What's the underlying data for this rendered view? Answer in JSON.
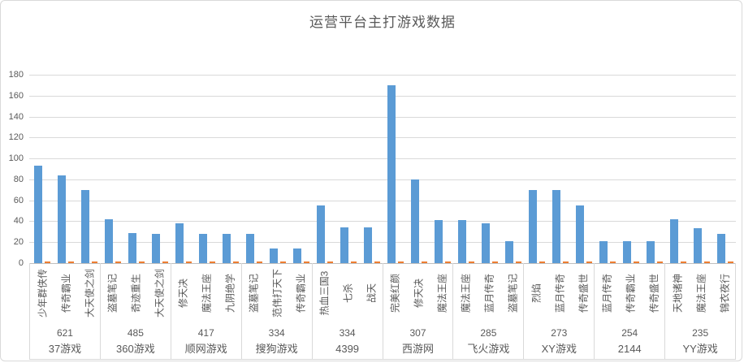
{
  "title": "运营平台主打游戏数据",
  "colors": {
    "bar_primary": "#5B9BD5",
    "bar_secondary": "#ED7D31",
    "gridline": "#D9D9D9",
    "axis_line": "#BFBFBF",
    "text": "#595959"
  },
  "chart_data": {
    "type": "bar",
    "title": "运营平台主打游戏数据",
    "xlabel": "",
    "ylabel": "",
    "y_axis": {
      "min": 0,
      "max": 180,
      "step": 20,
      "tick_labels": [
        "0",
        "20",
        "40",
        "60",
        "80",
        "100",
        "120",
        "140",
        "160",
        "180"
      ]
    },
    "grid": true,
    "legend": "none",
    "groups": [
      {
        "platform": "37游戏",
        "total": "621",
        "games": [
          "少年群侠传",
          "传奇霸业",
          "大天使之剑"
        ],
        "values": [
          93,
          84,
          70
        ],
        "values2": [
          1,
          1,
          1
        ]
      },
      {
        "platform": "360游戏",
        "total": "485",
        "games": [
          "盗墓笔记",
          "奇迹重生",
          "大天使之剑"
        ],
        "values": [
          42,
          29,
          28
        ],
        "values2": [
          1,
          1,
          1
        ]
      },
      {
        "platform": "顺网游戏",
        "total": "417",
        "games": [
          "修天决",
          "魔法王座",
          "九阴绝学"
        ],
        "values": [
          38,
          28,
          28
        ],
        "values2": [
          1,
          1,
          1
        ]
      },
      {
        "platform": "搜狗游戏",
        "total": "334",
        "games": [
          "盗墓笔记",
          "范伟打天下",
          "传奇霸业"
        ],
        "values": [
          28,
          14,
          14
        ],
        "values2": [
          1,
          1,
          1
        ]
      },
      {
        "platform": "4399",
        "total": "334",
        "games": [
          "热血三国3",
          "七杀",
          "战天"
        ],
        "values": [
          55,
          34,
          34
        ],
        "values2": [
          1,
          1,
          1
        ]
      },
      {
        "platform": "西游网",
        "total": "307",
        "games": [
          "完美红颜",
          "修天决",
          "魔法王座"
        ],
        "values": [
          170,
          80,
          41
        ],
        "values2": [
          1,
          1,
          1
        ]
      },
      {
        "platform": "飞火游戏",
        "total": "285",
        "games": [
          "魔法王座",
          "蓝月传奇",
          "盗墓笔记"
        ],
        "values": [
          41,
          38,
          21
        ],
        "values2": [
          1,
          1,
          1
        ]
      },
      {
        "platform": "XY游戏",
        "total": "273",
        "games": [
          "烈焰",
          "蓝月传奇",
          "传奇盛世"
        ],
        "values": [
          70,
          70,
          55
        ],
        "values2": [
          1,
          1,
          1
        ]
      },
      {
        "platform": "2144",
        "total": "254",
        "games": [
          "蓝月传奇",
          "传奇霸业",
          "传奇盛世"
        ],
        "values": [
          21,
          21,
          21
        ],
        "values2": [
          1,
          1,
          1
        ]
      },
      {
        "platform": "YY游戏",
        "total": "235",
        "games": [
          "天地诸神",
          "魔法王座",
          "锦衣夜行"
        ],
        "values": [
          42,
          33,
          28
        ],
        "values2": [
          1,
          1,
          1
        ]
      }
    ]
  }
}
